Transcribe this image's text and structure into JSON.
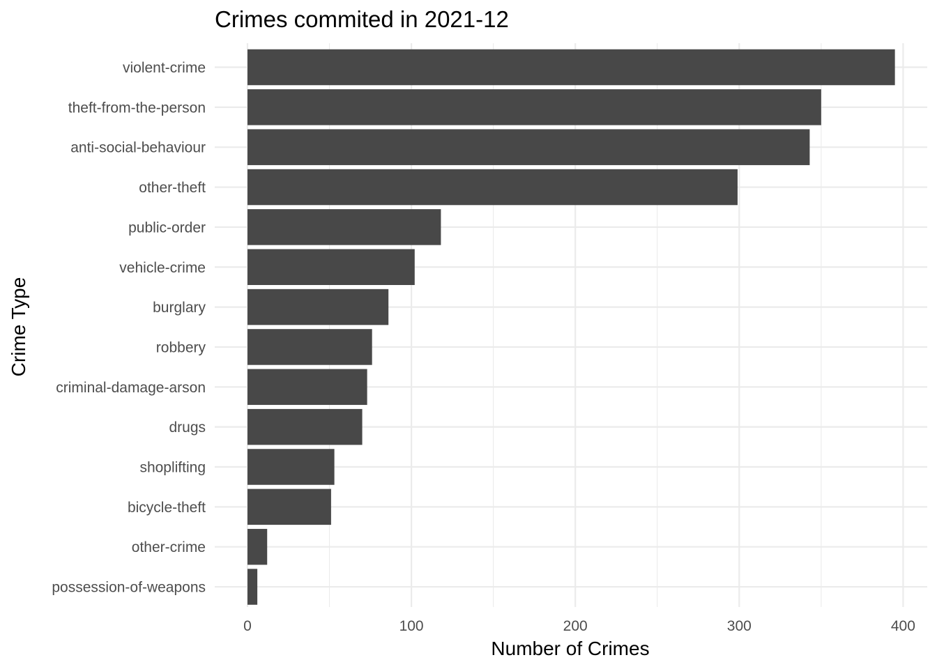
{
  "chart_data": {
    "type": "bar",
    "orientation": "horizontal",
    "title": "Crimes commited in 2021-12",
    "xlabel": "Number of Crimes",
    "ylabel": "Crime Type",
    "categories": [
      "violent-crime",
      "theft-from-the-person",
      "anti-social-behaviour",
      "other-theft",
      "public-order",
      "vehicle-crime",
      "burglary",
      "robbery",
      "criminal-damage-arson",
      "drugs",
      "shoplifting",
      "bicycle-theft",
      "other-crime",
      "possession-of-weapons"
    ],
    "values": [
      395,
      350,
      343,
      299,
      118,
      102,
      86,
      76,
      73,
      70,
      53,
      51,
      12,
      6
    ],
    "xlim": [
      0,
      410
    ],
    "xticks": [
      0,
      100,
      200,
      300,
      400
    ],
    "xtick_labels": [
      "0",
      "100",
      "200",
      "300",
      "400"
    ],
    "grid": true,
    "legend": "none",
    "bar_color": "#484848",
    "grid_color": "#ebebeb"
  }
}
